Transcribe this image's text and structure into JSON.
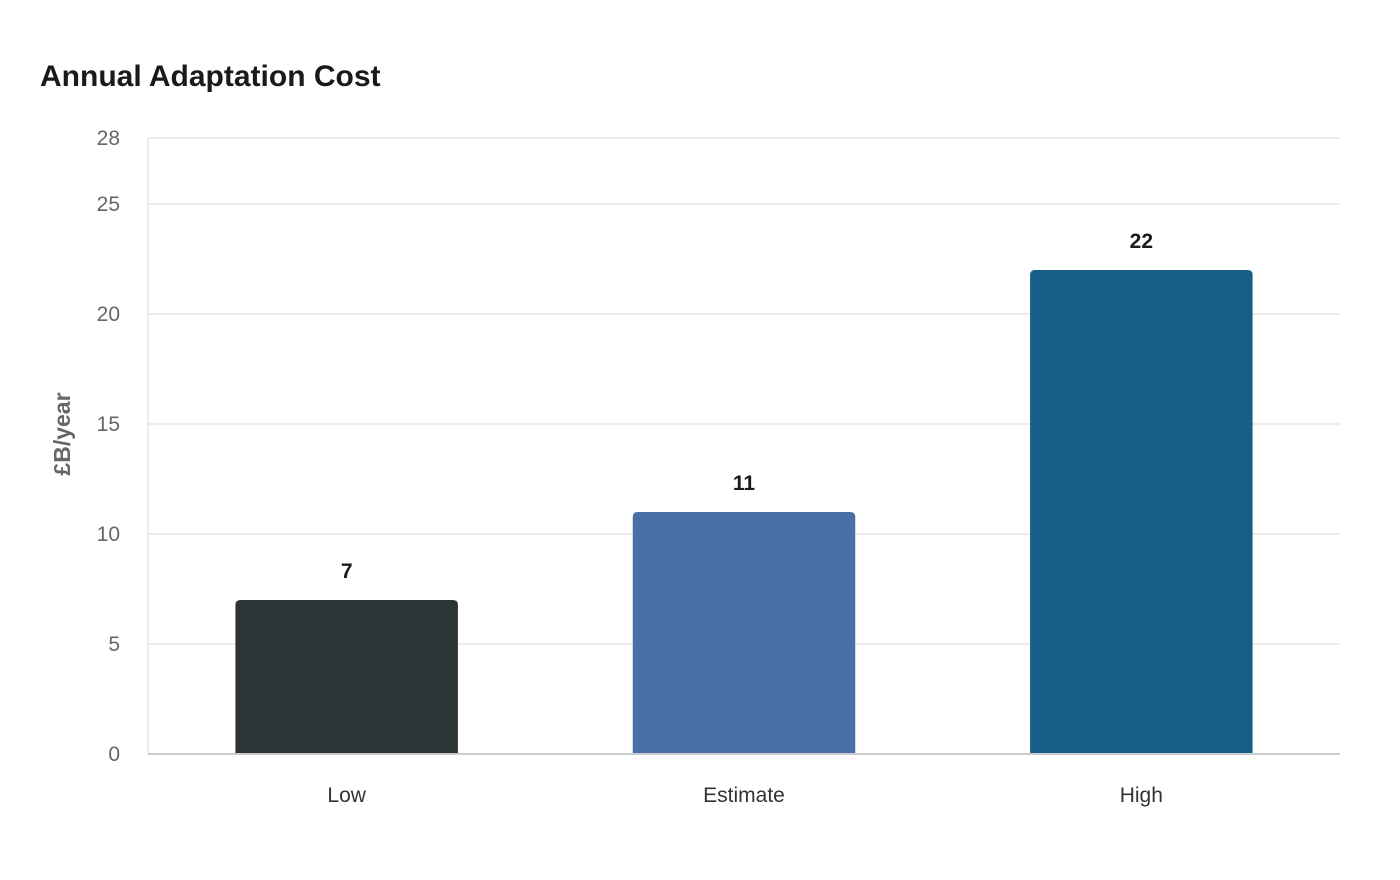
{
  "chart_data": {
    "type": "bar",
    "title": "Annual Adaptation Cost",
    "xlabel": "",
    "ylabel": "£B/year",
    "categories": [
      "Low",
      "Estimate",
      "High"
    ],
    "values": [
      7,
      11,
      22
    ],
    "data_labels": [
      "7",
      "11",
      "22"
    ],
    "colors": [
      "#2d3436",
      "#4a6fa5",
      "#166088"
    ],
    "ylim": [
      0,
      28
    ],
    "yticks": [
      0,
      5,
      10,
      15,
      20,
      25,
      28
    ],
    "grid": true,
    "legend": "none"
  }
}
